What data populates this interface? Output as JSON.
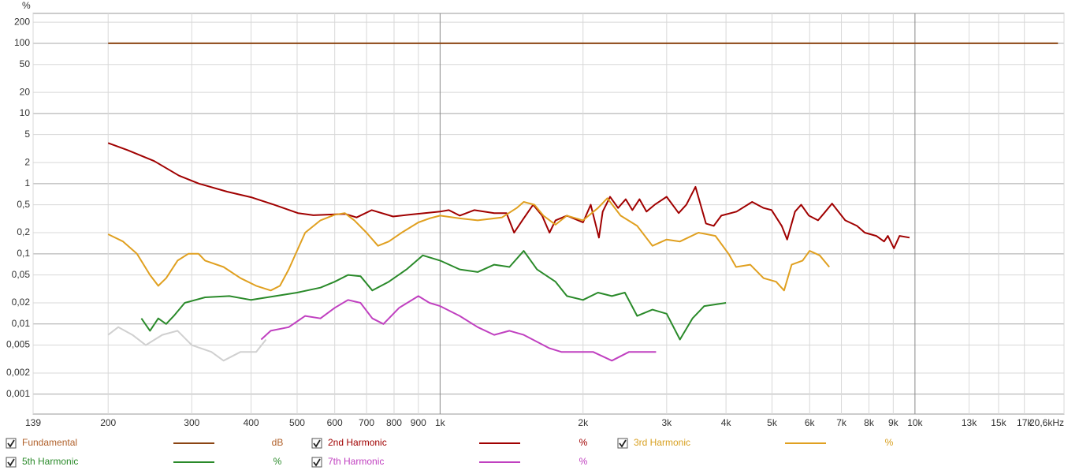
{
  "chart_data": {
    "type": "line",
    "ylabel": "%",
    "xscale": "log",
    "yscale": "log",
    "grid": true,
    "xlim": [
      139,
      20600
    ],
    "ylim": [
      0.00052,
      267
    ],
    "xticks": [
      139,
      200,
      300,
      400,
      500,
      600,
      700,
      800,
      900,
      {
        "value": 1000,
        "label": "1k"
      },
      {
        "value": 2000,
        "label": "2k"
      },
      {
        "value": 3000,
        "label": "3k"
      },
      {
        "value": 4000,
        "label": "4k"
      },
      {
        "value": 5000,
        "label": "5k"
      },
      {
        "value": 6000,
        "label": "6k"
      },
      {
        "value": 7000,
        "label": "7k"
      },
      {
        "value": 8000,
        "label": "8k"
      },
      {
        "value": 9000,
        "label": "9k"
      },
      {
        "value": 10000,
        "label": "10k"
      },
      {
        "value": 13000,
        "label": "13k"
      },
      {
        "value": 15000,
        "label": "15k"
      },
      {
        "value": 17000,
        "label": "17k"
      },
      {
        "value": 20600,
        "label": "20,6kHz"
      }
    ],
    "yticks": [
      {
        "value": 0.001,
        "label": "0,001"
      },
      {
        "value": 0.002,
        "label": "0,002"
      },
      {
        "value": 0.005,
        "label": "0,005"
      },
      {
        "value": 0.01,
        "label": "0,01"
      },
      {
        "value": 0.02,
        "label": "0,02"
      },
      {
        "value": 0.05,
        "label": "0,05"
      },
      {
        "value": 0.1,
        "label": "0,1"
      },
      {
        "value": 0.2,
        "label": "0,2"
      },
      {
        "value": 0.5,
        "label": "0,5"
      },
      1,
      2,
      5,
      10,
      20,
      50,
      100,
      200
    ],
    "series": [
      {
        "name": "Fundamental",
        "unit": "dB",
        "color": "#8b4513",
        "label_color": "#b0602a",
        "x": [
          200,
          20000
        ],
        "values": [
          100,
          100
        ]
      },
      {
        "name": "2nd Harmonic",
        "unit": "%",
        "color": "#a00000",
        "label_color": "#a00000",
        "x": [
          200,
          220,
          250,
          282,
          311,
          356,
          400,
          447,
          502,
          541,
          632,
          667,
          718,
          796,
          860,
          1000,
          1043,
          1100,
          1180,
          1300,
          1380,
          1432,
          1490,
          1570,
          1640,
          1700,
          1750,
          1850,
          2000,
          2076,
          2160,
          2200,
          2280,
          2370,
          2460,
          2540,
          2630,
          2720,
          2830,
          3000,
          3180,
          3300,
          3450,
          3630,
          3770,
          3910,
          4210,
          4540,
          4800,
          4990,
          5240,
          5380,
          5590,
          5760,
          5980,
          6250,
          6440,
          6690,
          7130,
          7550,
          7840,
          8290,
          8610,
          8770,
          9030,
          9280,
          9740
        ],
        "values": [
          3.8,
          3.0,
          2.1,
          1.3,
          1.0,
          0.77,
          0.64,
          0.5,
          0.38,
          0.355,
          0.37,
          0.33,
          0.42,
          0.34,
          0.36,
          0.4,
          0.42,
          0.35,
          0.42,
          0.38,
          0.38,
          0.2,
          0.3,
          0.5,
          0.35,
          0.2,
          0.3,
          0.35,
          0.28,
          0.5,
          0.17,
          0.4,
          0.65,
          0.45,
          0.6,
          0.42,
          0.6,
          0.4,
          0.5,
          0.65,
          0.38,
          0.5,
          0.9,
          0.27,
          0.25,
          0.35,
          0.4,
          0.55,
          0.45,
          0.42,
          0.25,
          0.16,
          0.4,
          0.5,
          0.35,
          0.3,
          0.38,
          0.52,
          0.3,
          0.25,
          0.2,
          0.18,
          0.15,
          0.18,
          0.12,
          0.18,
          0.17
        ]
      },
      {
        "name": "3rd Harmonic",
        "unit": "%",
        "color": "#e0a020",
        "label_color": "#d8a020",
        "x": [
          200,
          215,
          230,
          245,
          255,
          265,
          280,
          295,
          310,
          320,
          350,
          380,
          410,
          440,
          460,
          480,
          520,
          560,
          600,
          630,
          660,
          700,
          740,
          780,
          830,
          900,
          950,
          1000,
          1100,
          1200,
          1350,
          1450,
          1500,
          1580,
          1650,
          1750,
          1850,
          2000,
          2150,
          2250,
          2400,
          2600,
          2800,
          3000,
          3200,
          3500,
          3800,
          4050,
          4200,
          4500,
          4800,
          5100,
          5300,
          5500,
          5800,
          6000,
          6300,
          6600
        ],
        "values": [
          0.19,
          0.15,
          0.1,
          0.05,
          0.035,
          0.045,
          0.08,
          0.1,
          0.1,
          0.08,
          0.065,
          0.045,
          0.035,
          0.03,
          0.035,
          0.06,
          0.2,
          0.3,
          0.36,
          0.38,
          0.3,
          0.2,
          0.13,
          0.15,
          0.2,
          0.28,
          0.32,
          0.35,
          0.32,
          0.3,
          0.33,
          0.45,
          0.55,
          0.5,
          0.35,
          0.26,
          0.35,
          0.3,
          0.45,
          0.62,
          0.35,
          0.25,
          0.13,
          0.16,
          0.15,
          0.2,
          0.18,
          0.1,
          0.065,
          0.07,
          0.045,
          0.04,
          0.03,
          0.07,
          0.08,
          0.11,
          0.095,
          0.065
        ]
      },
      {
        "name": "5th Harmonic",
        "unit": "%",
        "color": "#2a8a2a",
        "label_color": "#2a8a2a",
        "x": [
          235,
          245,
          255,
          265,
          275,
          290,
          320,
          360,
          400,
          450,
          500,
          560,
          600,
          640,
          680,
          720,
          780,
          850,
          920,
          1000,
          1100,
          1200,
          1300,
          1400,
          1500,
          1600,
          1750,
          1850,
          2000,
          2150,
          2300,
          2450,
          2600,
          2800,
          3000,
          3200,
          3400,
          3600,
          4000
        ],
        "values": [
          0.012,
          0.008,
          0.012,
          0.01,
          0.013,
          0.02,
          0.024,
          0.025,
          0.022,
          0.025,
          0.028,
          0.033,
          0.04,
          0.05,
          0.048,
          0.03,
          0.04,
          0.06,
          0.095,
          0.08,
          0.06,
          0.055,
          0.07,
          0.065,
          0.11,
          0.06,
          0.04,
          0.025,
          0.022,
          0.028,
          0.025,
          0.028,
          0.013,
          0.016,
          0.014,
          0.006,
          0.012,
          0.018,
          0.02
        ]
      },
      {
        "name": "7th Harmonic",
        "unit": "%",
        "color": "#c040c0",
        "label_color": "#c040c0",
        "x": [
          420,
          440,
          480,
          520,
          560,
          600,
          640,
          680,
          720,
          760,
          820,
          900,
          950,
          1000,
          1100,
          1200,
          1300,
          1400,
          1500,
          1700,
          1800,
          1900,
          2100,
          2300,
          2500,
          2700,
          2850
        ],
        "values": [
          0.006,
          0.008,
          0.009,
          0.013,
          0.012,
          0.017,
          0.022,
          0.02,
          0.012,
          0.01,
          0.017,
          0.025,
          0.02,
          0.018,
          0.013,
          0.009,
          0.007,
          0.008,
          0.007,
          0.0045,
          0.004,
          0.004,
          0.004,
          0.003,
          0.004,
          0.004,
          0.004
        ]
      },
      {
        "color": "#d0d0d0",
        "x": [
          200,
          210,
          225,
          240,
          260,
          280,
          300,
          330,
          350,
          380,
          410,
          430
        ],
        "values": [
          0.007,
          0.009,
          0.007,
          0.005,
          0.007,
          0.008,
          0.005,
          0.004,
          0.003,
          0.004,
          0.004,
          0.006
        ]
      }
    ]
  }
}
